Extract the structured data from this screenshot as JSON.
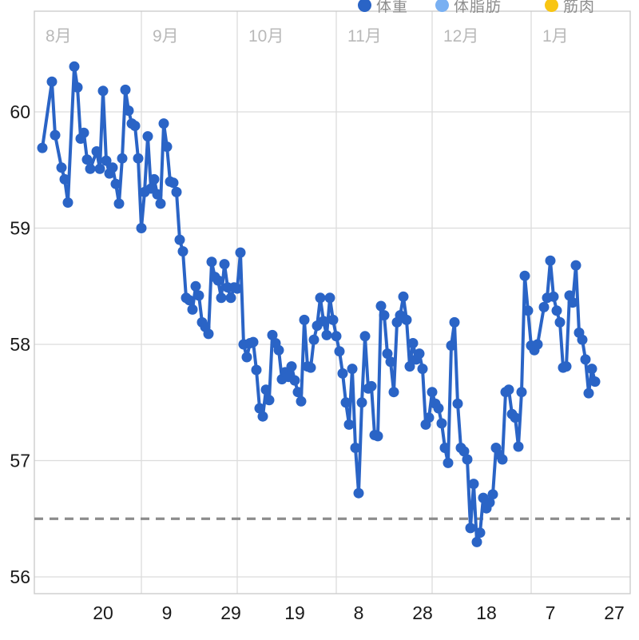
{
  "legend": {
    "items": [
      {
        "label": "体重",
        "color": "#2a64c6"
      },
      {
        "label": "体脂肪",
        "color": "#79b0f2"
      },
      {
        "label": "筋肉",
        "color": "#f8c513"
      }
    ]
  },
  "chart_data": {
    "type": "line",
    "title": "",
    "unit": "kg",
    "line_color": "#2a64c6",
    "grid_color": "#dcdcdc",
    "border_color": "#c9c9c9",
    "goal_line": {
      "value": 56.5,
      "color": "#8c8c8c",
      "style": "dashed"
    },
    "y_axis": {
      "ticks": [
        60,
        59,
        58,
        57,
        56
      ],
      "range": [
        55.85,
        60.87
      ],
      "grid": true
    },
    "x_axis": {
      "month_labels": [
        "8月",
        "9月",
        "10月",
        "11月",
        "12月",
        "1月"
      ],
      "month_boundaries": [
        "9/1",
        "10/1",
        "11/1",
        "12/1",
        "1/1"
      ],
      "ticks": [
        {
          "date": "8/20",
          "label": "20"
        },
        {
          "date": "9/9",
          "label": "9"
        },
        {
          "date": "9/29",
          "label": "29"
        },
        {
          "date": "10/19",
          "label": "19"
        },
        {
          "date": "11/8",
          "label": "8"
        },
        {
          "date": "11/28",
          "label": "28"
        },
        {
          "date": "12/18",
          "label": "18"
        },
        {
          "date": "1/7",
          "label": "7"
        },
        {
          "date": "1/27",
          "label": "27"
        }
      ]
    },
    "series": [
      {
        "name": "体重",
        "color": "#2a64c6",
        "points": [
          [
            "8/1",
            59.69
          ],
          [
            "8/4",
            60.26
          ],
          [
            "8/5",
            59.8
          ],
          [
            "8/7",
            59.52
          ],
          [
            "8/8",
            59.42
          ],
          [
            "8/9",
            59.22
          ],
          [
            "8/11",
            60.39
          ],
          [
            "8/12",
            60.21
          ],
          [
            "8/13",
            59.77
          ],
          [
            "8/14",
            59.82
          ],
          [
            "8/15",
            59.59
          ],
          [
            "8/16",
            59.51
          ],
          [
            "8/18",
            59.66
          ],
          [
            "8/19",
            59.51
          ],
          [
            "8/20",
            60.18
          ],
          [
            "8/21",
            59.58
          ],
          [
            "8/22",
            59.47
          ],
          [
            "8/23",
            59.52
          ],
          [
            "8/24",
            59.38
          ],
          [
            "8/25",
            59.21
          ],
          [
            "8/26",
            59.6
          ],
          [
            "8/27",
            60.19
          ],
          [
            "8/28",
            60.01
          ],
          [
            "8/29",
            59.9
          ],
          [
            "8/30",
            59.88
          ],
          [
            "8/31",
            59.6
          ],
          [
            "9/1",
            59.0
          ],
          [
            "9/2",
            59.31
          ],
          [
            "9/3",
            59.79
          ],
          [
            "9/4",
            59.34
          ],
          [
            "9/5",
            59.42
          ],
          [
            "9/6",
            59.29
          ],
          [
            "9/7",
            59.21
          ],
          [
            "9/8",
            59.9
          ],
          [
            "9/9",
            59.7
          ],
          [
            "9/10",
            59.4
          ],
          [
            "9/11",
            59.39
          ],
          [
            "9/12",
            59.31
          ],
          [
            "9/13",
            58.9
          ],
          [
            "9/14",
            58.8
          ],
          [
            "9/15",
            58.4
          ],
          [
            "9/16",
            58.38
          ],
          [
            "9/17",
            58.3
          ],
          [
            "9/18",
            58.5
          ],
          [
            "9/19",
            58.42
          ],
          [
            "9/20",
            58.19
          ],
          [
            "9/21",
            58.15
          ],
          [
            "9/22",
            58.09
          ],
          [
            "9/23",
            58.71
          ],
          [
            "9/24",
            58.58
          ],
          [
            "9/25",
            58.55
          ],
          [
            "9/26",
            58.4
          ],
          [
            "9/27",
            58.69
          ],
          [
            "9/28",
            58.49
          ],
          [
            "9/29",
            58.4
          ],
          [
            "9/30",
            58.49
          ],
          [
            "10/1",
            58.48
          ],
          [
            "10/2",
            58.79
          ],
          [
            "10/3",
            58.0
          ],
          [
            "10/4",
            57.89
          ],
          [
            "10/5",
            58.01
          ],
          [
            "10/6",
            58.02
          ],
          [
            "10/7",
            57.78
          ],
          [
            "10/8",
            57.45
          ],
          [
            "10/9",
            57.38
          ],
          [
            "10/10",
            57.61
          ],
          [
            "10/11",
            57.52
          ],
          [
            "10/12",
            58.08
          ],
          [
            "10/13",
            58.01
          ],
          [
            "10/14",
            57.95
          ],
          [
            "10/15",
            57.7
          ],
          [
            "10/16",
            57.76
          ],
          [
            "10/17",
            57.72
          ],
          [
            "10/18",
            57.81
          ],
          [
            "10/19",
            57.69
          ],
          [
            "10/20",
            57.59
          ],
          [
            "10/21",
            57.51
          ],
          [
            "10/22",
            58.21
          ],
          [
            "10/23",
            57.81
          ],
          [
            "10/24",
            57.8
          ],
          [
            "10/25",
            58.04
          ],
          [
            "10/26",
            58.16
          ],
          [
            "10/27",
            58.4
          ],
          [
            "10/28",
            58.2
          ],
          [
            "10/29",
            58.08
          ],
          [
            "10/30",
            58.4
          ],
          [
            "10/31",
            58.21
          ],
          [
            "11/1",
            58.07
          ],
          [
            "11/2",
            57.94
          ],
          [
            "11/3",
            57.75
          ],
          [
            "11/4",
            57.5
          ],
          [
            "11/5",
            57.31
          ],
          [
            "11/6",
            57.79
          ],
          [
            "11/7",
            57.11
          ],
          [
            "11/8",
            56.72
          ],
          [
            "11/9",
            57.5
          ],
          [
            "11/10",
            58.07
          ],
          [
            "11/11",
            57.62
          ],
          [
            "11/12",
            57.64
          ],
          [
            "11/13",
            57.22
          ],
          [
            "11/14",
            57.21
          ],
          [
            "11/15",
            58.33
          ],
          [
            "11/16",
            58.25
          ],
          [
            "11/17",
            57.92
          ],
          [
            "11/18",
            57.85
          ],
          [
            "11/19",
            57.59
          ],
          [
            "11/20",
            58.19
          ],
          [
            "11/21",
            58.25
          ],
          [
            "11/22",
            58.41
          ],
          [
            "11/23",
            58.21
          ],
          [
            "11/24",
            57.81
          ],
          [
            "11/25",
            58.01
          ],
          [
            "11/26",
            57.87
          ],
          [
            "11/27",
            57.92
          ],
          [
            "11/28",
            57.79
          ],
          [
            "11/29",
            57.31
          ],
          [
            "11/30",
            57.37
          ],
          [
            "12/1",
            57.59
          ],
          [
            "12/2",
            57.49
          ],
          [
            "12/3",
            57.45
          ],
          [
            "12/4",
            57.32
          ],
          [
            "12/5",
            57.11
          ],
          [
            "12/6",
            56.98
          ],
          [
            "12/7",
            57.99
          ],
          [
            "12/8",
            58.19
          ],
          [
            "12/9",
            57.49
          ],
          [
            "12/10",
            57.11
          ],
          [
            "12/11",
            57.08
          ],
          [
            "12/12",
            57.01
          ],
          [
            "12/13",
            56.42
          ],
          [
            "12/14",
            56.8
          ],
          [
            "12/15",
            56.3
          ],
          [
            "12/16",
            56.38
          ],
          [
            "12/17",
            56.68
          ],
          [
            "12/18",
            56.59
          ],
          [
            "12/19",
            56.64
          ],
          [
            "12/20",
            56.71
          ],
          [
            "12/21",
            57.11
          ],
          [
            "12/22",
            57.05
          ],
          [
            "12/23",
            57.01
          ],
          [
            "12/24",
            57.59
          ],
          [
            "12/25",
            57.61
          ],
          [
            "12/26",
            57.4
          ],
          [
            "12/27",
            57.37
          ],
          [
            "12/28",
            57.12
          ],
          [
            "12/29",
            57.59
          ],
          [
            "12/30",
            58.59
          ],
          [
            "12/31",
            58.29
          ],
          [
            "1/1",
            57.99
          ],
          [
            "1/2",
            57.95
          ],
          [
            "1/3",
            58.0
          ],
          [
            "1/5",
            58.32
          ],
          [
            "1/6",
            58.4
          ],
          [
            "1/7",
            58.72
          ],
          [
            "1/8",
            58.41
          ],
          [
            "1/9",
            58.29
          ],
          [
            "1/10",
            58.19
          ],
          [
            "1/11",
            57.8
          ],
          [
            "1/12",
            57.81
          ],
          [
            "1/13",
            58.42
          ],
          [
            "1/14",
            58.36
          ],
          [
            "1/15",
            58.68
          ],
          [
            "1/16",
            58.1
          ],
          [
            "1/17",
            58.04
          ],
          [
            "1/18",
            57.87
          ],
          [
            "1/19",
            57.58
          ],
          [
            "1/20",
            57.79
          ],
          [
            "1/21",
            57.68
          ]
        ]
      }
    ]
  }
}
